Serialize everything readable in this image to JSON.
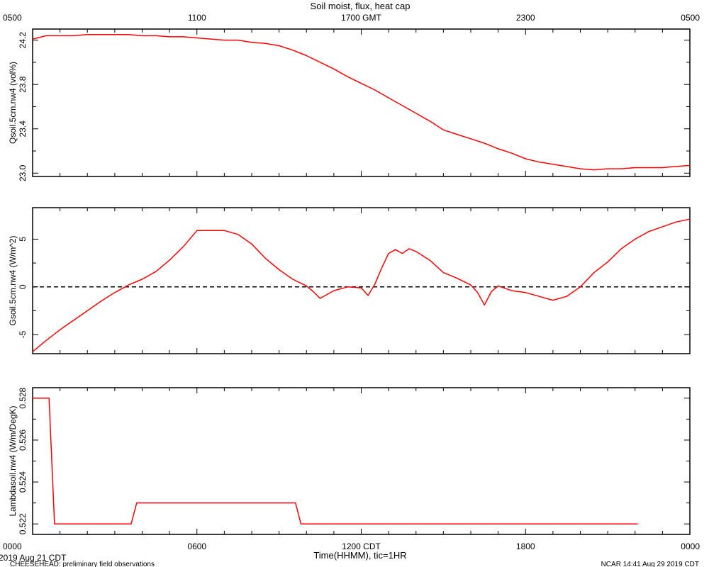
{
  "chart_data": {
    "type": "line",
    "title": "Soil moist, flux, heat cap",
    "colors": {
      "data": "#ff0000",
      "axes": "#000000",
      "zero_line": "#000000"
    },
    "top_axis": {
      "unit_label": "GMT",
      "ticks": [
        {
          "x": 0,
          "label": "0500"
        },
        {
          "x": 6,
          "label": "1100"
        },
        {
          "x": 12,
          "label": "1700"
        },
        {
          "x": 18,
          "label": "2300"
        },
        {
          "x": 24,
          "label": "0500"
        }
      ]
    },
    "x_axis": {
      "xlabel": "Time(HHMM), tic=1HR",
      "range_hours": [
        0,
        24
      ],
      "ticks": [
        {
          "x": 0,
          "label": "0000"
        },
        {
          "x": 6,
          "label": "0600"
        },
        {
          "x": 12,
          "label": "1200 CDT"
        },
        {
          "x": 18,
          "label": "1800"
        },
        {
          "x": 24,
          "label": "0000"
        }
      ]
    },
    "panels": [
      {
        "ylabel": "Qsoil.5cm.nw4 (vol%)",
        "ylim": [
          22.97,
          24.3
        ],
        "yticks": [
          23.0,
          23.4,
          23.8,
          24.2
        ],
        "ytick_labels": [
          "23.0",
          "23.4",
          "23.8",
          "24.2"
        ],
        "zero_line": false,
        "series": [
          {
            "x": [
              0,
              0.5,
              1,
              1.5,
              2,
              2.5,
              3,
              3.5,
              4,
              4.5,
              5,
              5.5,
              6,
              6.5,
              7,
              7.5,
              8,
              8.5,
              9,
              9.5,
              10,
              10.5,
              11,
              11.5,
              12,
              12.5,
              13,
              13.5,
              14,
              14.5,
              15,
              15.5,
              16,
              16.5,
              17,
              17.5,
              18,
              18.5,
              19,
              19.5,
              20,
              20.5,
              21,
              21.5,
              22,
              22.5,
              23,
              23.5,
              24
            ],
            "y": [
              24.21,
              24.24,
              24.24,
              24.24,
              24.25,
              24.25,
              24.25,
              24.25,
              24.24,
              24.24,
              24.23,
              24.23,
              24.22,
              24.21,
              24.2,
              24.2,
              24.18,
              24.17,
              24.15,
              24.11,
              24.06,
              24.0,
              23.94,
              23.87,
              23.81,
              23.75,
              23.68,
              23.61,
              23.54,
              23.47,
              23.39,
              23.35,
              23.31,
              23.27,
              23.22,
              23.18,
              23.13,
              23.1,
              23.08,
              23.06,
              23.04,
              23.03,
              23.04,
              23.04,
              23.05,
              23.05,
              23.05,
              23.06,
              23.07
            ]
          }
        ]
      },
      {
        "ylabel": "Gsoil.5cm.nw4 (W/m^2)",
        "ylim": [
          -7,
          8.3
        ],
        "yticks": [
          -5,
          0,
          5
        ],
        "ytick_labels": [
          "-5",
          "0",
          "5"
        ],
        "zero_line": true,
        "series": [
          {
            "x": [
              0,
              0.5,
              1,
              1.5,
              2,
              2.5,
              3,
              3.5,
              4,
              4.5,
              5,
              5.5,
              6,
              6.5,
              7,
              7.5,
              8,
              8.5,
              9,
              9.5,
              10,
              10.25,
              10.5,
              11,
              11.5,
              12,
              12.25,
              12.5,
              12.75,
              13,
              13.25,
              13.5,
              13.75,
              14,
              14.5,
              15,
              15.5,
              16,
              16.25,
              16.5,
              16.75,
              17,
              17.5,
              18,
              18.5,
              19,
              19.5,
              20,
              20.5,
              21,
              21.5,
              22,
              22.5,
              23,
              23.5,
              24
            ],
            "y": [
              -6.8,
              -5.6,
              -4.5,
              -3.5,
              -2.5,
              -1.5,
              -0.6,
              0.2,
              0.8,
              1.6,
              2.8,
              4.2,
              5.9,
              5.9,
              5.9,
              5.5,
              4.5,
              3.0,
              1.8,
              0.8,
              0.1,
              -0.5,
              -1.2,
              -0.4,
              0.0,
              -0.1,
              -0.9,
              0.3,
              2.0,
              3.5,
              3.9,
              3.5,
              4.0,
              3.7,
              2.8,
              1.5,
              0.9,
              0.2,
              -0.6,
              -1.9,
              -0.5,
              0.1,
              -0.4,
              -0.6,
              -1.0,
              -1.4,
              -1.0,
              0.0,
              1.5,
              2.6,
              4.0,
              5.0,
              5.8,
              6.3,
              6.8,
              7.1
            ]
          }
        ]
      },
      {
        "ylabel": "Lambdasoil.nw4 (W/m/DegK)",
        "ylim": [
          0.5215,
          0.5285
        ],
        "yticks": [
          0.522,
          0.524,
          0.526,
          0.528
        ],
        "ytick_labels": [
          "0.522",
          "0.524",
          "0.526",
          "0.528"
        ],
        "zero_line": false,
        "series": [
          {
            "x": [
              0,
              0.6,
              0.8,
              3.6,
              3.8,
              9.6,
              9.8,
              22.1
            ],
            "y": [
              0.528,
              0.528,
              0.522,
              0.522,
              0.523,
              0.523,
              0.522,
              0.522
            ]
          }
        ]
      }
    ],
    "footer": {
      "date_label": "2019 Aug 21 CDT",
      "project_label": "CHEESEHEAD: preliminary field observations",
      "stamp_label": "NCAR 14:41 Aug 29 2019 CDT"
    }
  }
}
